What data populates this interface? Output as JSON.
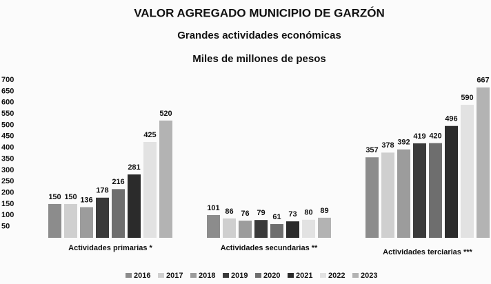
{
  "chart_data": {
    "type": "bar",
    "title": "VALOR AGREGADO MUNICIPIO DE GARZÓN",
    "subtitle": [
      "Grandes actividades económicas",
      "Miles de millones de pesos"
    ],
    "categories": [
      "Actividades primarias *",
      "Actividades secundarias **",
      "Actividades terciarias ***"
    ],
    "series": [
      {
        "name": "2016",
        "color": "#8c8c8c",
        "values": [
          150,
          101,
          357
        ]
      },
      {
        "name": "2017",
        "color": "#cfcfcf",
        "values": [
          150,
          86,
          378
        ]
      },
      {
        "name": "2018",
        "color": "#9c9c9c",
        "values": [
          136,
          76,
          392
        ]
      },
      {
        "name": "2019",
        "color": "#3a3a3a",
        "values": [
          178,
          79,
          419
        ]
      },
      {
        "name": "2020",
        "color": "#6e6e6e",
        "values": [
          216,
          61,
          420
        ]
      },
      {
        "name": "2021",
        "color": "#2b2b2b",
        "values": [
          281,
          73,
          496
        ]
      },
      {
        "name": "2022",
        "color": "#e2e2e2",
        "values": [
          425,
          80,
          590
        ]
      },
      {
        "name": "2023",
        "color": "#b3b3b3",
        "values": [
          520,
          89,
          667
        ]
      }
    ],
    "ylim": [
      0,
      700
    ],
    "yticks": [
      50,
      100,
      150,
      200,
      250,
      300,
      350,
      400,
      450,
      500,
      550,
      600,
      650,
      700
    ],
    "grid": false
  }
}
